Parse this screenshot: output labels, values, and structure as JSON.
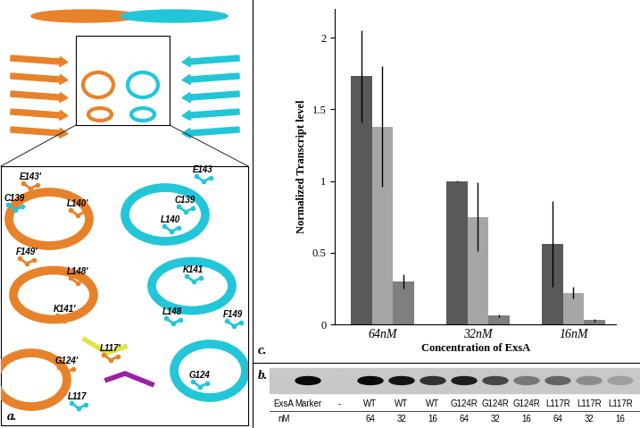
{
  "panel_a": {
    "label": "a.",
    "residue_labels": [
      "E143'",
      "C139",
      "L140'",
      "E143",
      "C139",
      "L140",
      "F149'",
      "L148'",
      "K141",
      "K141'",
      "L148",
      "F149",
      "L117'",
      "G124'",
      "G124",
      "L117"
    ]
  },
  "panel_b": {
    "label": "b.",
    "row_labels": [
      "ExsA",
      "nM"
    ],
    "samples": [
      "Marker",
      "-",
      "WT",
      "WT",
      "WT",
      "G124R",
      "G124R",
      "G124R",
      "L117R",
      "L117R",
      "L117R"
    ],
    "concentrations": [
      null,
      null,
      64,
      32,
      16,
      64,
      32,
      16,
      64,
      32,
      16
    ],
    "band_intensity": [
      0.95,
      0.0,
      0.95,
      0.9,
      0.75,
      0.85,
      0.65,
      0.4,
      0.5,
      0.3,
      0.2
    ]
  },
  "chart_data": {
    "type": "bar",
    "panel_label": "c.",
    "y_label": "Normalized Transcript level",
    "x_label": "Concentration of ExsA",
    "categories": [
      "64nM",
      "32nM",
      "16nM"
    ],
    "series": [
      {
        "color": "#595959",
        "values": [
          1.73,
          1.0,
          0.56
        ],
        "errors": [
          0.32,
          0.005,
          0.3
        ]
      },
      {
        "color": "#a6a6a6",
        "values": [
          1.38,
          0.75,
          0.22
        ],
        "errors": [
          0.42,
          0.24,
          0.04
        ]
      },
      {
        "color": "#7f7f7f",
        "values": [
          0.3,
          0.06,
          0.03
        ],
        "errors": [
          0.05,
          0.01,
          0.01
        ]
      }
    ],
    "ylim": [
      0,
      2.2
    ],
    "yticks": [
      0,
      0.5,
      1,
      1.5,
      2
    ],
    "grid": false
  }
}
